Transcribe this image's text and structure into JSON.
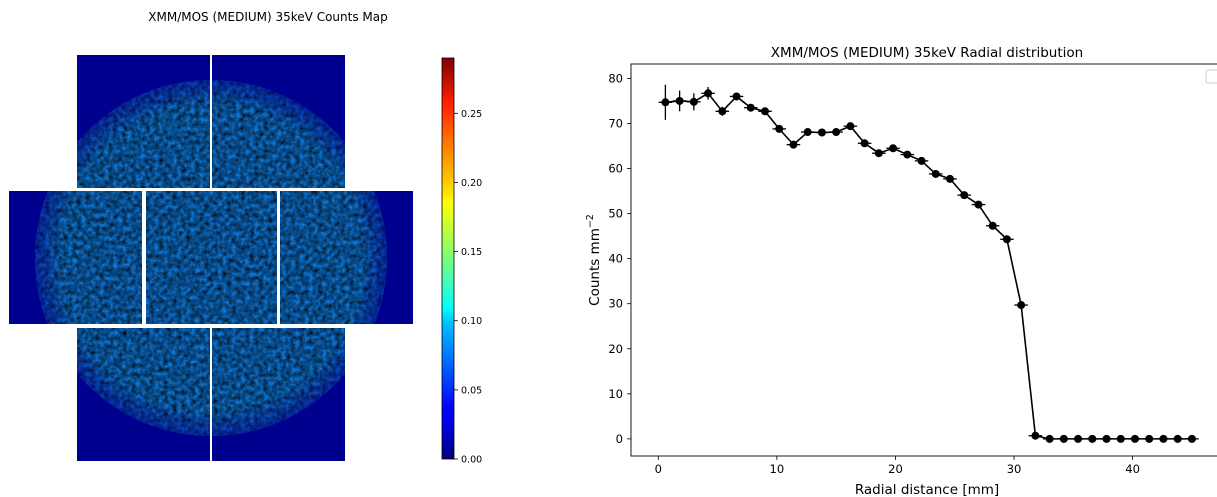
{
  "chart_data": [
    {
      "type": "heatmap",
      "title": "XMM/MOS (MEDIUM) 35keV Counts Map",
      "colormap": "jet",
      "colorbar": {
        "vmin": 0.0,
        "vmax": 0.29,
        "ticks": [
          0.0,
          0.05,
          0.1,
          0.15,
          0.2,
          0.25
        ],
        "tick_labels": [
          "0.00",
          "0.05",
          "0.10",
          "0.15",
          "0.20",
          "0.25"
        ]
      },
      "axes_visible": false,
      "description": "Seven CCD detector panels showing a circular field of counts (~0.07-0.15) on a background of 0"
    },
    {
      "type": "line",
      "title": "XMM/MOS (MEDIUM) 35keV Radial distribution",
      "xlabel": "Radial distance [mm]",
      "ylabel": "Counts mm",
      "ylabel_superscript": "−2",
      "xlim": [
        -2.3,
        47.2
      ],
      "ylim": [
        -3.8,
        83.2
      ],
      "xticks": [
        0,
        10,
        20,
        30,
        40
      ],
      "yticks": [
        0,
        10,
        20,
        30,
        40,
        50,
        60,
        70,
        80
      ],
      "legend": "top-right (empty)",
      "x_error_half_width": 0.57,
      "series": [
        {
          "color": "#000000",
          "marker": "circle",
          "x": [
            0.6,
            1.8,
            3.0,
            4.2,
            5.4,
            6.6,
            7.8,
            9.0,
            10.2,
            11.4,
            12.6,
            13.8,
            15.0,
            16.2,
            17.4,
            18.6,
            19.8,
            21.0,
            22.2,
            23.4,
            24.6,
            25.8,
            27.0,
            28.2,
            29.4,
            30.6,
            31.8,
            33.0,
            34.2,
            35.4,
            36.6,
            37.8,
            39.0,
            40.2,
            41.4,
            42.6,
            43.8,
            45.0
          ],
          "y": [
            74.7,
            75.0,
            74.8,
            76.7,
            72.7,
            76.0,
            73.5,
            72.7,
            68.8,
            65.3,
            68.1,
            68.0,
            68.1,
            69.4,
            65.6,
            63.4,
            64.5,
            63.1,
            61.7,
            58.8,
            57.7,
            54.1,
            52.0,
            47.3,
            44.3,
            29.7,
            0.7,
            0.0,
            0.0,
            0.0,
            0.0,
            0.0,
            0.0,
            0.0,
            0.0,
            0.0,
            0.0,
            0.0
          ],
          "yerr": [
            3.9,
            2.3,
            1.9,
            1.4,
            1.0,
            0.8,
            0.7,
            0.6,
            0.6,
            0.6,
            0.5,
            0.5,
            0.5,
            0.5,
            0.5,
            0.5,
            0.5,
            0.5,
            0.5,
            0.5,
            0.5,
            0.5,
            0.5,
            0.5,
            0.5,
            0.5,
            0.1,
            0.0,
            0.0,
            0.0,
            0.0,
            0.0,
            0.0,
            0.0,
            0.0,
            0.0,
            0.0,
            0.0
          ]
        }
      ]
    }
  ]
}
